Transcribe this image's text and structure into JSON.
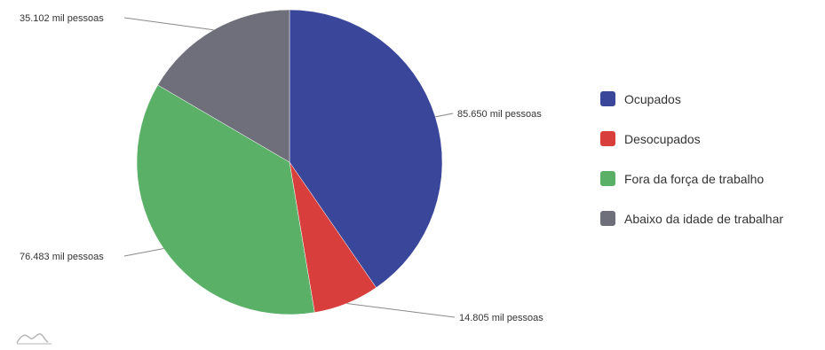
{
  "chart_data": {
    "type": "pie",
    "categories": [
      "Ocupados",
      "Desocupados",
      "Fora da força de trabalho",
      "Abaixo da idade de trabalhar"
    ],
    "values": [
      85650,
      14805,
      76483,
      35102
    ],
    "unit": "mil pessoas",
    "data_labels": [
      "85.650 mil pessoas",
      "14.805 mil pessoas",
      "76.483 mil pessoas",
      "35.102 mil pessoas"
    ],
    "colors": [
      "#3a4699",
      "#d83e3b",
      "#5bb068",
      "#6e6f7a"
    ],
    "legend_position": "right",
    "start_angle": "top, clockwise"
  },
  "logo": {
    "icon": "chart-brand-logo-icon"
  }
}
